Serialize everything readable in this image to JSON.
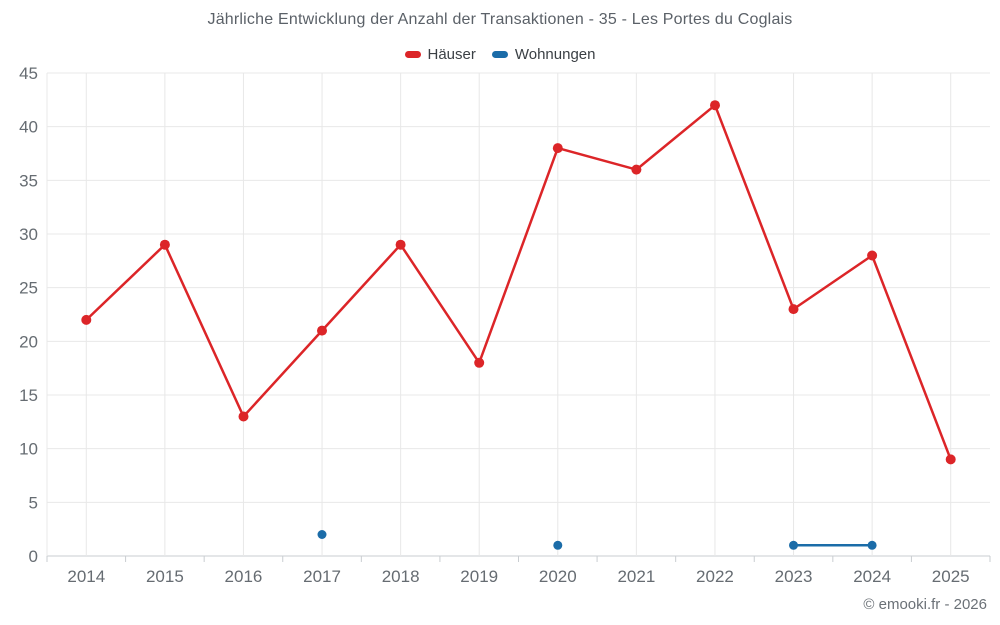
{
  "title": "Jährliche Entwicklung der Anzahl der Transaktionen - 35 - Les Portes du Coglais",
  "footer": "© emooki.fr - 2026",
  "colors": {
    "haeuser_red": "#dc2528",
    "wohnungen_blue": "#1b6ca8",
    "grid": "#e8e8e8",
    "axis": "#c9cdd1",
    "tick_label": "#666c72",
    "title_text": "#5b6168",
    "legend_text": "#3b4045",
    "background": "#ffffff"
  },
  "chart_data": {
    "type": "line",
    "title": "Jährliche Entwicklung der Anzahl der Transaktionen - 35 - Les Portes du Coglais",
    "categories": [
      "2014",
      "2015",
      "2016",
      "2017",
      "2018",
      "2019",
      "2020",
      "2021",
      "2022",
      "2023",
      "2024",
      "2025"
    ],
    "series": [
      {
        "name": "Häuser",
        "color": "#dc2528",
        "values": [
          22,
          29,
          13,
          21,
          29,
          18,
          38,
          36,
          42,
          23,
          28,
          9
        ]
      },
      {
        "name": "Wohnungen",
        "color": "#1b6ca8",
        "values": [
          null,
          null,
          null,
          2,
          null,
          null,
          1,
          null,
          null,
          1,
          1,
          null
        ]
      }
    ],
    "xlabel": "",
    "ylabel": "",
    "ylim": [
      0,
      45
    ],
    "ytick_step": 5,
    "grid": true,
    "legend_position": "top",
    "connect_nulls": false
  }
}
